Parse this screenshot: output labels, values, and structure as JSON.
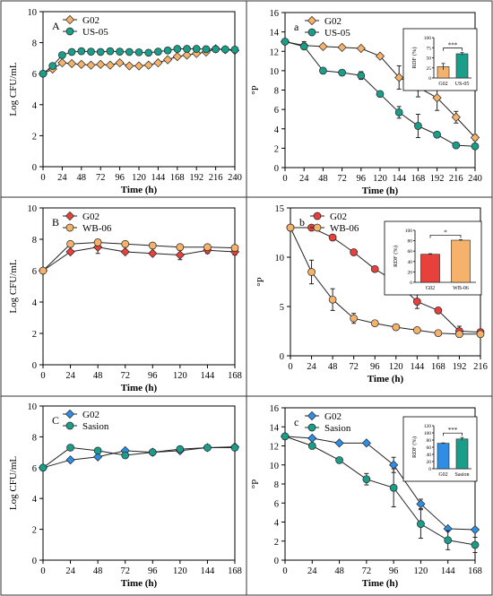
{
  "chart_data": [
    {
      "id": "A",
      "panel_letter": "A",
      "type": "line",
      "xlabel": "Time (h)",
      "ylabel": "Log CFU/mL",
      "xlim": [
        0,
        240
      ],
      "ylim": [
        0,
        10
      ],
      "xticks": [
        0,
        24,
        48,
        72,
        96,
        120,
        144,
        168,
        192,
        216,
        240
      ],
      "yticks": [
        0,
        2,
        4,
        6,
        8,
        10
      ],
      "legend_position": "top-left",
      "series": [
        {
          "name": "G02",
          "color": "#f5b26b",
          "marker": "diamond",
          "x": [
            0,
            12,
            24,
            36,
            48,
            60,
            72,
            84,
            96,
            108,
            120,
            132,
            144,
            156,
            168,
            180,
            192,
            204,
            216,
            228,
            240
          ],
          "y": [
            6.0,
            6.3,
            6.7,
            6.65,
            6.6,
            6.55,
            6.6,
            6.55,
            6.7,
            6.5,
            6.5,
            6.55,
            6.7,
            6.9,
            7.1,
            7.2,
            7.3,
            7.4,
            7.6,
            7.55,
            7.5
          ]
        },
        {
          "name": "US-05",
          "color": "#1a9e8a",
          "marker": "circle",
          "x": [
            0,
            12,
            24,
            36,
            48,
            60,
            72,
            84,
            96,
            108,
            120,
            132,
            144,
            156,
            168,
            180,
            192,
            204,
            216,
            228,
            240
          ],
          "y": [
            6.0,
            6.5,
            7.2,
            7.4,
            7.45,
            7.42,
            7.4,
            7.45,
            7.42,
            7.4,
            7.38,
            7.35,
            7.42,
            7.5,
            7.6,
            7.6,
            7.6,
            7.58,
            7.58,
            7.57,
            7.55
          ]
        }
      ]
    },
    {
      "id": "a",
      "panel_letter": "a",
      "type": "line",
      "xlabel": "Time (h)",
      "ylabel": "°P",
      "xlim": [
        0,
        240
      ],
      "ylim": [
        0,
        16
      ],
      "xticks": [
        0,
        24,
        48,
        72,
        96,
        120,
        144,
        168,
        192,
        216,
        240
      ],
      "yticks": [
        0,
        2,
        4,
        6,
        8,
        10,
        12,
        14,
        16
      ],
      "legend_position": "top-left",
      "series": [
        {
          "name": "G02",
          "color": "#f5b26b",
          "marker": "diamond",
          "x": [
            0,
            24,
            48,
            72,
            96,
            120,
            144,
            168,
            192,
            216,
            240
          ],
          "y": [
            13.0,
            12.6,
            12.5,
            12.4,
            12.3,
            11.5,
            9.3,
            8.3,
            7.2,
            5.2,
            3.1
          ],
          "err": [
            0,
            0.4,
            0,
            0,
            0,
            0,
            1.2,
            1.0,
            1.3,
            0.6,
            0.3
          ]
        },
        {
          "name": "US-05",
          "color": "#1a9e8a",
          "marker": "circle",
          "x": [
            0,
            24,
            48,
            72,
            96,
            120,
            144,
            168,
            192,
            216,
            240
          ],
          "y": [
            13.0,
            12.5,
            10.0,
            9.8,
            9.5,
            7.6,
            5.7,
            4.3,
            3.4,
            2.3,
            2.2
          ],
          "err": [
            0,
            0,
            0,
            0,
            0.4,
            0,
            0.6,
            1.2,
            0,
            0,
            0.2
          ]
        }
      ],
      "inset": {
        "type": "bar",
        "ylabel": "RDF (%)",
        "ylim": [
          0,
          100
        ],
        "yticks": [
          0,
          25,
          50,
          75,
          100
        ],
        "categories": [
          "G02",
          "US-05"
        ],
        "values": [
          28,
          60
        ],
        "errors": [
          8,
          3
        ],
        "colors": [
          "#f5b26b",
          "#1a9e8a"
        ],
        "significance": "***"
      }
    },
    {
      "id": "B",
      "panel_letter": "B",
      "type": "line",
      "xlabel": "Time (h)",
      "ylabel": "Log CFU/mL",
      "xlim": [
        0,
        168
      ],
      "ylim": [
        0,
        10
      ],
      "xticks": [
        0,
        24,
        48,
        72,
        96,
        120,
        144,
        168
      ],
      "yticks": [
        0,
        2,
        4,
        6,
        8,
        10
      ],
      "legend_position": "top-left",
      "series": [
        {
          "name": "G02",
          "color": "#e8403a",
          "marker": "diamond",
          "x": [
            0,
            24,
            48,
            72,
            96,
            120,
            144,
            168
          ],
          "y": [
            6.0,
            7.2,
            7.5,
            7.2,
            7.1,
            7.0,
            7.3,
            7.2
          ],
          "err": [
            0,
            0,
            0.4,
            0,
            0,
            0.3,
            0.2,
            0.2
          ]
        },
        {
          "name": "WB-06",
          "color": "#f5b26b",
          "marker": "circle",
          "x": [
            0,
            24,
            48,
            72,
            96,
            120,
            144,
            168
          ],
          "y": [
            6.0,
            7.7,
            7.8,
            7.7,
            7.6,
            7.5,
            7.5,
            7.45
          ],
          "err": [
            0,
            0,
            0.2,
            0,
            0,
            0,
            0.1,
            0
          ]
        }
      ]
    },
    {
      "id": "b",
      "panel_letter": "b",
      "type": "line",
      "xlabel": "Time (h)",
      "ylabel": "°P",
      "xlim": [
        0,
        216
      ],
      "ylim": [
        0,
        15
      ],
      "xticks": [
        0,
        24,
        48,
        72,
        96,
        120,
        144,
        168,
        192,
        216
      ],
      "yticks": [
        0,
        5,
        10,
        15
      ],
      "legend_position": "top-left",
      "series": [
        {
          "name": "G02",
          "color": "#e8403a",
          "marker": "circle",
          "x": [
            0,
            24,
            48,
            72,
            96,
            120,
            144,
            168,
            192,
            216
          ],
          "y": [
            13.0,
            13.0,
            12.0,
            10.5,
            8.8,
            7.5,
            5.5,
            4.6,
            2.5,
            2.4
          ],
          "err": [
            0,
            0,
            0,
            0,
            0,
            0,
            0.7,
            0,
            0.5,
            0
          ]
        },
        {
          "name": "WB-06",
          "color": "#f5b26b",
          "marker": "circle",
          "x": [
            0,
            24,
            48,
            72,
            96,
            120,
            144,
            168,
            192,
            216
          ],
          "y": [
            13.0,
            8.5,
            5.7,
            3.8,
            3.3,
            2.9,
            2.6,
            2.3,
            2.2,
            2.2
          ],
          "err": [
            0,
            1.2,
            1.1,
            0.5,
            0,
            0,
            0,
            0,
            0,
            0
          ]
        }
      ],
      "inset": {
        "type": "bar",
        "ylabel": "RDF (%)",
        "ylim": [
          0,
          100
        ],
        "yticks": [
          0,
          20,
          40,
          60,
          80,
          100
        ],
        "categories": [
          "G02",
          "WB-06"
        ],
        "values": [
          54,
          81
        ],
        "errors": [
          1,
          1
        ],
        "colors": [
          "#e8403a",
          "#f5b26b"
        ],
        "significance": "*"
      }
    },
    {
      "id": "C",
      "panel_letter": "C",
      "type": "line",
      "xlabel": "Time (h)",
      "ylabel": "Log CFU/mL",
      "xlim": [
        0,
        168
      ],
      "ylim": [
        0,
        10
      ],
      "xticks": [
        0,
        24,
        48,
        72,
        96,
        120,
        144,
        168
      ],
      "yticks": [
        0,
        2,
        4,
        6,
        8,
        10
      ],
      "legend_position": "top-left",
      "series": [
        {
          "name": "G02",
          "color": "#2f8de4",
          "marker": "diamond",
          "x": [
            0,
            24,
            48,
            72,
            96,
            120,
            144,
            168
          ],
          "y": [
            6.0,
            6.5,
            6.7,
            7.1,
            7.0,
            7.1,
            7.3,
            7.35
          ]
        },
        {
          "name": "Sasion",
          "color": "#1a9e8a",
          "marker": "circle",
          "x": [
            0,
            24,
            48,
            72,
            96,
            120,
            144,
            168
          ],
          "y": [
            6.0,
            7.3,
            7.1,
            6.8,
            7.0,
            7.2,
            7.3,
            7.3
          ]
        }
      ]
    },
    {
      "id": "c",
      "panel_letter": "c",
      "type": "line",
      "xlabel": "Time (h)",
      "ylabel": "°P",
      "xlim": [
        0,
        168
      ],
      "ylim": [
        0,
        16
      ],
      "xticks": [
        0,
        24,
        48,
        72,
        96,
        120,
        144,
        168
      ],
      "yticks": [
        0,
        2,
        4,
        6,
        8,
        10,
        12,
        14,
        16
      ],
      "legend_position": "top-left",
      "series": [
        {
          "name": "G02",
          "color": "#2f8de4",
          "marker": "diamond",
          "x": [
            0,
            24,
            48,
            72,
            96,
            120,
            144,
            168
          ],
          "y": [
            13.0,
            12.8,
            12.3,
            12.3,
            10.0,
            5.9,
            3.3,
            3.2
          ],
          "err": [
            0,
            0,
            0,
            0,
            0.8,
            0.5,
            0,
            0
          ]
        },
        {
          "name": "Sasion",
          "color": "#1a9e8a",
          "marker": "circle",
          "x": [
            0,
            24,
            48,
            72,
            96,
            120,
            144,
            168
          ],
          "y": [
            13.0,
            12.0,
            10.5,
            8.5,
            7.6,
            3.8,
            2.1,
            1.6
          ],
          "err": [
            0,
            0,
            0,
            0.6,
            2.0,
            1.5,
            1.0,
            0.8
          ]
        }
      ],
      "inset": {
        "type": "bar",
        "ylabel": "RDF (%)",
        "ylim": [
          0,
          120
        ],
        "yticks": [
          0,
          20,
          40,
          60,
          80,
          100,
          120
        ],
        "categories": [
          "G02",
          "Sasion"
        ],
        "values": [
          71,
          83
        ],
        "errors": [
          1,
          4
        ],
        "colors": [
          "#2f8de4",
          "#1a9e8a"
        ],
        "significance": "***"
      }
    }
  ]
}
